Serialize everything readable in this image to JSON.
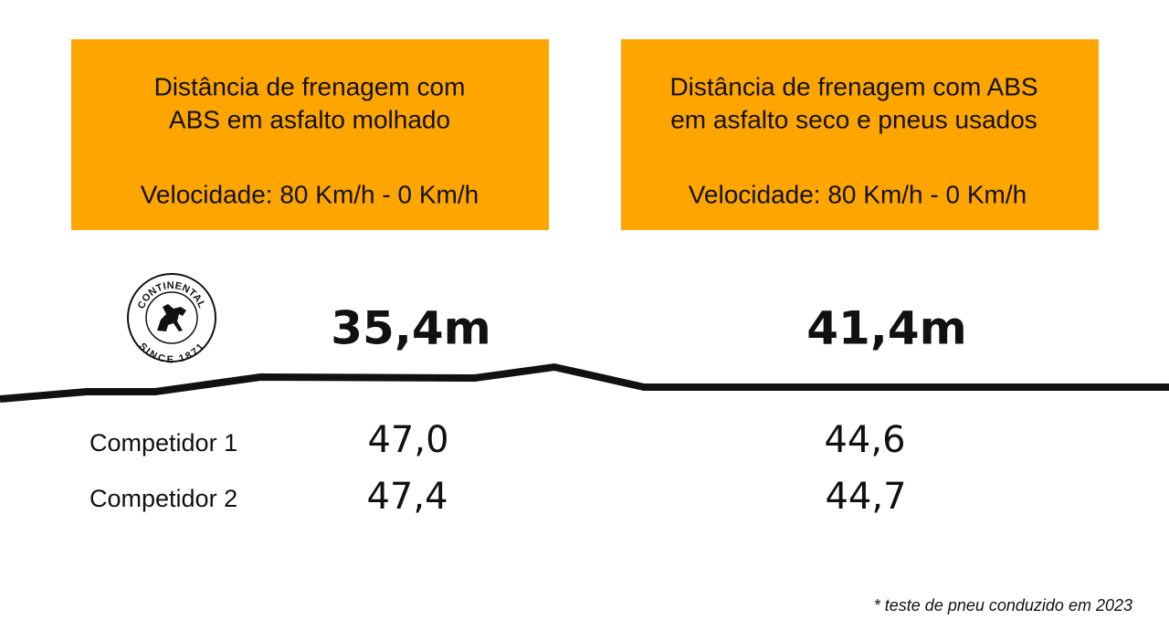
{
  "panels": [
    {
      "title_lines": [
        "Distância de frenagem com",
        "ABS em asfalto molhado"
      ],
      "speed": "Velocidade: 80 Km/h - 0 Km/h",
      "result": "35,4m"
    },
    {
      "title_lines": [
        "Distância de frenagem com ABS",
        "em asfalto seco e pneus usados"
      ],
      "speed": "Velocidade: 80 Km/h - 0 Km/h",
      "result": "41,4m"
    }
  ],
  "logo": {
    "name": "CONTINENTAL",
    "since": "SINCE 1871"
  },
  "competitors": [
    {
      "name": "Competidor 1",
      "values": [
        "47,0",
        "44,6"
      ]
    },
    {
      "name": "Competidor 2",
      "values": [
        "47,4",
        "44,7"
      ]
    }
  ],
  "footnote": "* teste de pneu conduzido em 2023"
}
